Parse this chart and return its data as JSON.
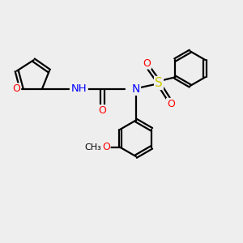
{
  "background_color": "#eeeeee",
  "bond_color": "#000000",
  "atom_colors": {
    "O": "#ff0000",
    "N": "#0000ff",
    "S": "#cccc00",
    "H": "#4499aa",
    "C": "#000000"
  },
  "figsize": [
    3.0,
    3.0
  ],
  "dpi": 100,
  "xlim": [
    0,
    10
  ],
  "ylim": [
    0,
    10
  ]
}
